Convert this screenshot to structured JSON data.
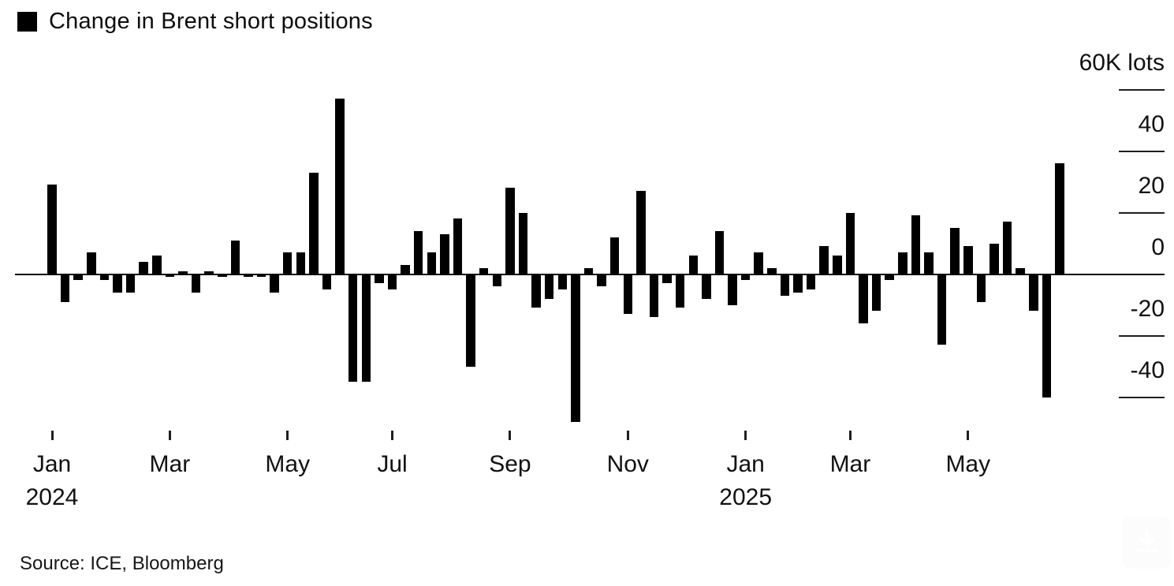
{
  "legend": {
    "label": "Change in Brent short positions",
    "swatch_color": "#000000"
  },
  "source": "Source: ICE, Bloomberg",
  "chart_data": {
    "type": "bar",
    "title": "Change in Brent short positions",
    "unit": "K lots",
    "bar_color": "#000000",
    "grid": false,
    "legend_position": "top-left",
    "frequency": "weekly",
    "values": [
      29,
      -9,
      -2,
      7,
      -2,
      -6,
      -6,
      4,
      6,
      -1,
      1,
      -6,
      1,
      -1,
      11,
      -1,
      -1,
      -6,
      7,
      7,
      33,
      -5,
      57,
      -35,
      -35,
      -3,
      -5,
      3,
      14,
      7,
      13,
      18,
      -30,
      2,
      -4,
      28,
      20,
      -11,
      -8,
      -5,
      -48,
      2,
      -4,
      12,
      -13,
      27,
      -14,
      -3,
      -11,
      6,
      -8,
      14,
      -10,
      -2,
      7,
      2,
      -7,
      -6,
      -5,
      9,
      6,
      20,
      -16,
      -12,
      -2,
      7,
      19,
      7,
      -23,
      15,
      9,
      -9,
      10,
      17,
      2,
      -12,
      -40,
      36
    ],
    "y_axis": {
      "side": "right",
      "range": [
        -52,
        62
      ],
      "ticks": [
        {
          "value": 60,
          "label": "60K lots"
        },
        {
          "value": 40,
          "label": "40"
        },
        {
          "value": 20,
          "label": "20"
        },
        {
          "value": 0,
          "label": "0"
        },
        {
          "value": -20,
          "label": "-20"
        },
        {
          "value": -40,
          "label": "-40"
        }
      ]
    },
    "x_axis": {
      "ticks": [
        {
          "index": 0,
          "label": "Jan",
          "sublabel": "2024"
        },
        {
          "index": 9,
          "label": "Mar",
          "sublabel": ""
        },
        {
          "index": 18,
          "label": "May",
          "sublabel": ""
        },
        {
          "index": 26,
          "label": "Jul",
          "sublabel": ""
        },
        {
          "index": 35,
          "label": "Sep",
          "sublabel": ""
        },
        {
          "index": 44,
          "label": "Nov",
          "sublabel": ""
        },
        {
          "index": 53,
          "label": "Jan",
          "sublabel": "2025"
        },
        {
          "index": 61,
          "label": "Mar",
          "sublabel": ""
        },
        {
          "index": 70,
          "label": "May",
          "sublabel": ""
        }
      ]
    }
  }
}
